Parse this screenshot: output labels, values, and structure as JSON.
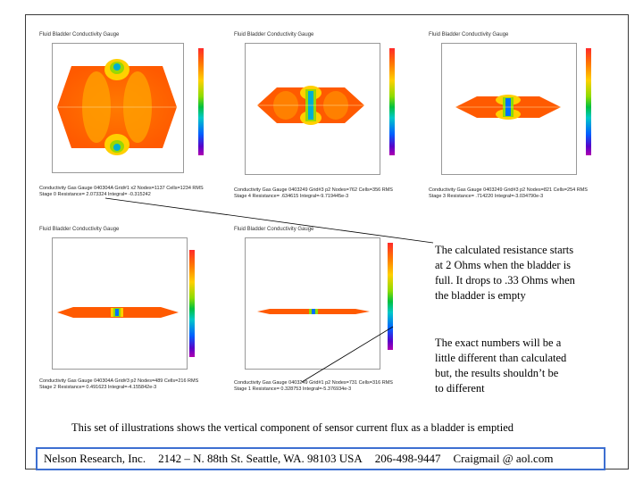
{
  "panels": [
    {
      "title": "Fluid Bladder Conductivity Gauge",
      "caption_line1": "Conductivity Gas Gauge 040304A Grid#1 x2 Nodes=1137 Cells=1234 RMS",
      "caption_line2": "Stage 0 Resistance= 2.073324 Integral= -0.315242"
    },
    {
      "title": "Fluid Bladder Conductivity Gauge",
      "caption_line1": "Conductivity Gas Gauge 0403249 Grid#3 p2 Nodes=762 Cells=356 RMS",
      "caption_line2": "Stage 4 Resistance= .634615 Integral=-9.719445e-3"
    },
    {
      "title": "Fluid Bladder Conductivity Gauge",
      "caption_line1": "Conductivity Gas Gauge 0403249 Grid#3 p2 Nodes=821 Cells=254 RMS",
      "caption_line2": "Stage 3 Resistance= .714220 Integral=-3.034790e-3"
    },
    {
      "title": "Fluid Bladder Conductivity Gauge",
      "caption_line1": "Conductivity Gas Gauge 040304A Grid#3 p2 Nodes=489 Cells=216 RMS",
      "caption_line2": "Stage 2 Resistance= 0.491623 Integral=-4.155842e-3"
    },
    {
      "title": "Fluid Bladder Conductivity Gauge",
      "caption_line1": "Conductivity Gas Gauge 0403249 Grid#1 p2 Nodes=731 Cells=316 RMS",
      "caption_line2": "Stage 1 Resistance= 0.328753 Integral=-5.376934e-3"
    }
  ],
  "notes": {
    "note1": [
      "The calculated resistance starts",
      "at 2 Ohms when the bladder is",
      "full.  It drops to .33 Ohms when",
      "the bladder is empty"
    ],
    "note2": [
      "The exact numbers will be a",
      "little different than calculated",
      "but, the results shouldn’t be",
      "to different"
    ]
  },
  "caption": "This set of illustrations shows the vertical component of sensor current flux as a bladder is emptied",
  "footer": {
    "company": "Nelson Research, Inc.",
    "address": "2142 – N. 88th St. Seattle, WA. 98103  USA",
    "phone": "206-498-9447",
    "email": "Craigmail @ aol.com"
  },
  "colors": {
    "footer_border": "#3d6fd1",
    "field_outer": "#ff5a00",
    "field_inner": "#ffb000"
  }
}
